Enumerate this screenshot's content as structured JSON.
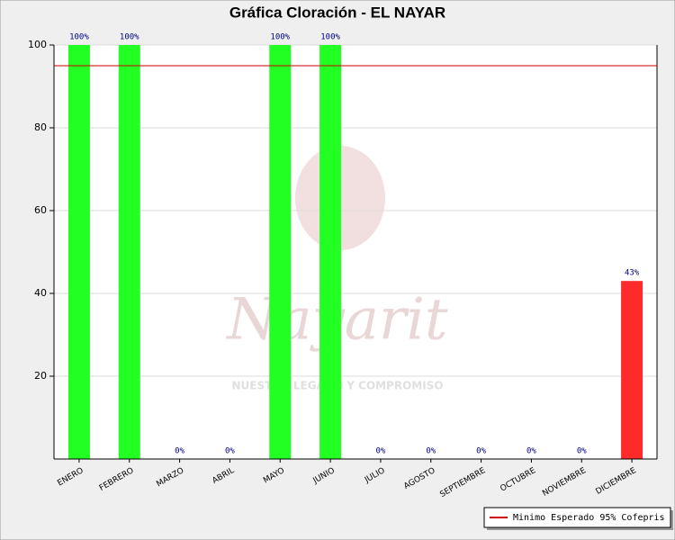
{
  "chart_data": {
    "type": "bar",
    "title": "Gráfica Cloración - EL NAYAR",
    "categories": [
      "ENERO",
      "FEBRERO",
      "MARZO",
      "ABRIL",
      "MAYO",
      "JUNIO",
      "JULIO",
      "AGOSTO",
      "SEPTIEMBRE",
      "OCTUBRE",
      "NOVIEMBRE",
      "DICIEMBRE"
    ],
    "values": [
      100,
      100,
      0,
      0,
      100,
      100,
      0,
      0,
      0,
      0,
      0,
      43
    ],
    "value_labels": [
      "100%",
      "100%",
      "0%",
      "0%",
      "100%",
      "100%",
      "0%",
      "0%",
      "0%",
      "0%",
      "0%",
      "43%"
    ],
    "colors": [
      "#22ff22",
      "#22ff22",
      "#22ff22",
      "#22ff22",
      "#22ff22",
      "#22ff22",
      "#22ff22",
      "#22ff22",
      "#22ff22",
      "#22ff22",
      "#22ff22",
      "#ff2a2a"
    ],
    "ylim": [
      0,
      100
    ],
    "yticks": [
      20,
      40,
      60,
      80,
      100
    ],
    "grid": true,
    "reference_line": {
      "value": 95,
      "name": "Minimo Esperado 95% Cofepris",
      "color": "#cc0000"
    },
    "legend": "bottom-right",
    "watermark": [
      "Nayarit",
      "NUESTRO LEGADO Y COMPROMISO"
    ]
  }
}
